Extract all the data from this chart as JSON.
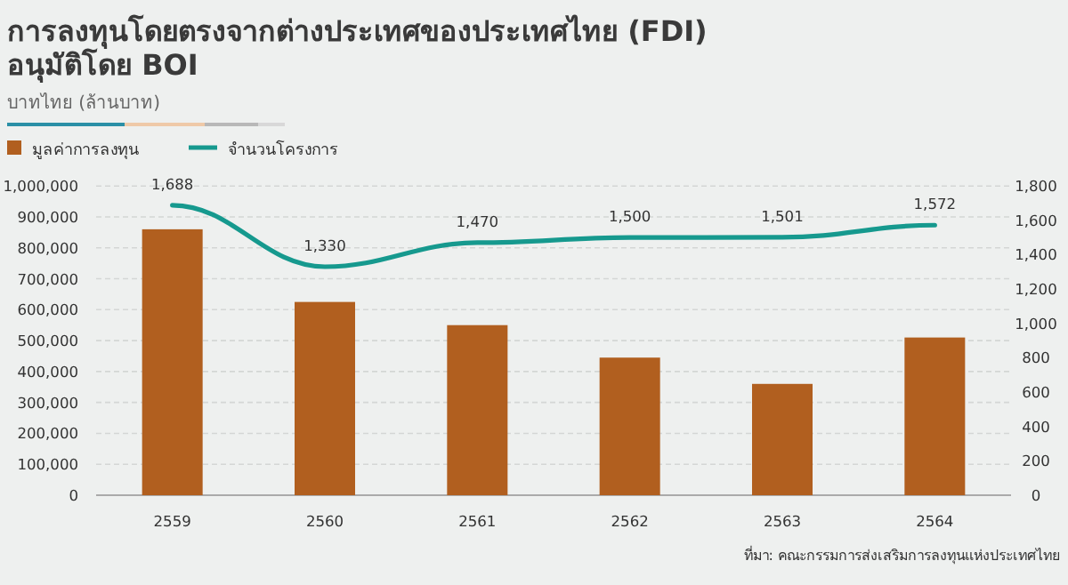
{
  "chart_data": {
    "type": "bar",
    "title": "การลงทุนโดยตรงจากต่างประเทศของประเทศไทย (FDI) อนุมัติโดย BOI",
    "subtitle": "บาทไทย (ล้านบาท)",
    "categories": [
      "2559",
      "2560",
      "2561",
      "2562",
      "2563",
      "2564"
    ],
    "series": [
      {
        "name": "มูลค่าการลงทุน",
        "color": "#b15f1f",
        "values": [
          860000,
          625000,
          550000,
          445000,
          360000,
          510000
        ]
      },
      {
        "name": "จำนวนโครงการ",
        "type": "line",
        "axis": "y2",
        "color": "#16998e",
        "values": [
          1688,
          1330,
          1470,
          1500,
          1501,
          1572
        ],
        "value_labels": [
          "1,688",
          "1,330",
          "1,470",
          "1,500",
          "1,501",
          "1,572"
        ]
      }
    ],
    "ylim": [
      0,
      1000000
    ],
    "yticks": [
      {
        "value": 0,
        "label": "0"
      },
      {
        "value": 100000,
        "label": "100,000"
      },
      {
        "value": 200000,
        "label": "200,000"
      },
      {
        "value": 300000,
        "label": "300,000"
      },
      {
        "value": 400000,
        "label": "400,000"
      },
      {
        "value": 500000,
        "label": "500,000"
      },
      {
        "value": 600000,
        "label": "600,000"
      },
      {
        "value": 700000,
        "label": "700,000"
      },
      {
        "value": 800000,
        "label": "800,000"
      },
      {
        "value": 900000,
        "label": "900,000"
      },
      {
        "value": 1000000,
        "label": "1,000,000"
      }
    ],
    "y2lim": [
      0,
      1800
    ],
    "y2ticks": [
      0,
      200,
      400,
      600,
      800,
      {
        "value": 1000,
        "label": "1,000"
      },
      {
        "value": 1200,
        "label": "1,200"
      },
      {
        "value": 1400,
        "label": "1,400"
      },
      {
        "value": 1600,
        "label": "1,600"
      },
      {
        "value": 1800,
        "label": "1,800"
      }
    ],
    "grid": "y",
    "legend": "top left",
    "annotations": [
      "ที่มา: คณะกรรมการส่งเสริมการลงทุนแห่งประเทศไทย"
    ]
  }
}
